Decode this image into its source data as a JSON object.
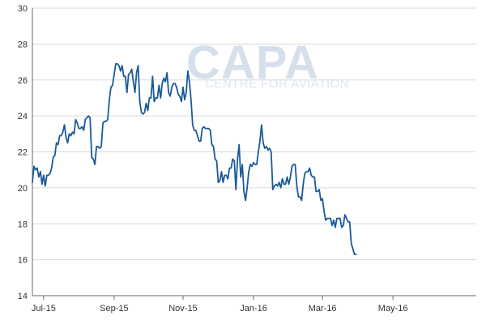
{
  "watermark": {
    "logo": "CAPA",
    "tagline": "CENTRE FOR AVIATION"
  },
  "chart_data": {
    "type": "line",
    "title": "",
    "xlabel": "",
    "ylabel": "",
    "ylim": [
      14,
      30
    ],
    "yticks": [
      14,
      16,
      18,
      20,
      22,
      24,
      26,
      28,
      30
    ],
    "xlim": [
      0,
      277
    ],
    "xticks": [
      {
        "label": "Jul-15",
        "x": 7
      },
      {
        "label": "Sep-15",
        "x": 51
      },
      {
        "label": "Nov-15",
        "x": 94
      },
      {
        "label": "Jan-16",
        "x": 138
      },
      {
        "label": "Mar-16",
        "x": 181
      },
      {
        "label": "May-16",
        "x": 225
      }
    ],
    "grid": "horizontal",
    "legend": "none",
    "colors": {
      "line": "#1a5a9a",
      "grid": "#d9d9d9",
      "axis": "#666666"
    },
    "series": [
      {
        "values": [
          [
            0,
            20.3
          ],
          [
            1,
            21.2
          ],
          [
            2,
            21.0
          ],
          [
            3,
            21.1
          ],
          [
            4,
            20.6
          ],
          [
            5,
            20.9
          ],
          [
            6,
            20.2
          ],
          [
            7,
            20.7
          ],
          [
            8,
            20.1
          ],
          [
            9,
            20.7
          ],
          [
            10,
            20.7
          ],
          [
            11,
            20.8
          ],
          [
            12,
            21.1
          ],
          [
            13,
            21.7
          ],
          [
            14,
            21.8
          ],
          [
            15,
            22.5
          ],
          [
            16,
            22.4
          ],
          [
            17,
            22.9
          ],
          [
            18,
            22.9
          ],
          [
            19,
            23.1
          ],
          [
            20,
            23.5
          ],
          [
            21,
            22.8
          ],
          [
            22,
            22.5
          ],
          [
            23,
            23.0
          ],
          [
            24,
            22.9
          ],
          [
            25,
            23.1
          ],
          [
            26,
            23.0
          ],
          [
            27,
            23.8
          ],
          [
            28,
            23.6
          ],
          [
            29,
            23.3
          ],
          [
            30,
            23.3
          ],
          [
            31,
            23.4
          ],
          [
            32,
            23.2
          ],
          [
            33,
            23.8
          ],
          [
            34,
            23.9
          ],
          [
            35,
            24.0
          ],
          [
            36,
            23.9
          ],
          [
            37,
            21.7
          ],
          [
            38,
            21.6
          ],
          [
            39,
            21.3
          ],
          [
            40,
            22.3
          ],
          [
            41,
            22.3
          ],
          [
            42,
            22.2
          ],
          [
            43,
            22.3
          ],
          [
            44,
            23.6
          ],
          [
            45,
            23.7
          ],
          [
            46,
            23.7
          ],
          [
            47,
            23.8
          ],
          [
            48,
            24.9
          ],
          [
            49,
            25.6
          ],
          [
            50,
            25.7
          ],
          [
            51,
            26.3
          ],
          [
            52,
            26.9
          ],
          [
            53,
            26.9
          ],
          [
            54,
            26.8
          ],
          [
            55,
            26.5
          ],
          [
            56,
            26.8
          ],
          [
            57,
            26.2
          ],
          [
            58,
            26.2
          ],
          [
            59,
            25.3
          ],
          [
            60,
            26.3
          ],
          [
            61,
            26.4
          ],
          [
            62,
            26.6
          ],
          [
            63,
            25.9
          ],
          [
            64,
            25.3
          ],
          [
            65,
            26.4
          ],
          [
            66,
            26.8
          ],
          [
            67,
            24.8
          ],
          [
            68,
            24.2
          ],
          [
            69,
            24.1
          ],
          [
            70,
            24.2
          ],
          [
            71,
            24.7
          ],
          [
            72,
            24.3
          ],
          [
            73,
            25.0
          ],
          [
            74,
            25.0
          ],
          [
            75,
            26.2
          ],
          [
            76,
            24.8
          ],
          [
            77,
            25.0
          ],
          [
            78,
            25.0
          ],
          [
            79,
            25.7
          ],
          [
            80,
            25.0
          ],
          [
            81,
            25.8
          ],
          [
            82,
            26.1
          ],
          [
            83,
            25.9
          ],
          [
            84,
            26.4
          ],
          [
            85,
            25.3
          ],
          [
            86,
            25.1
          ],
          [
            87,
            25.6
          ],
          [
            88,
            25.8
          ],
          [
            89,
            25.8
          ],
          [
            90,
            25.6
          ],
          [
            91,
            25.2
          ],
          [
            92,
            25.1
          ],
          [
            93,
            24.8
          ],
          [
            94,
            25.6
          ],
          [
            95,
            24.9
          ],
          [
            96,
            25.3
          ],
          [
            97,
            26.5
          ],
          [
            98,
            25.9
          ],
          [
            99,
            24.9
          ],
          [
            100,
            23.5
          ],
          [
            101,
            23.2
          ],
          [
            102,
            23.2
          ],
          [
            103,
            22.9
          ],
          [
            104,
            22.6
          ],
          [
            105,
            22.6
          ],
          [
            106,
            23.3
          ],
          [
            107,
            23.4
          ],
          [
            108,
            23.3
          ],
          [
            109,
            23.3
          ],
          [
            110,
            23.3
          ],
          [
            111,
            23.2
          ],
          [
            112,
            22.4
          ],
          [
            113,
            22.3
          ],
          [
            114,
            21.6
          ],
          [
            115,
            21.5
          ],
          [
            116,
            20.3
          ],
          [
            117,
            20.4
          ],
          [
            118,
            20.9
          ],
          [
            119,
            20.3
          ],
          [
            120,
            20.7
          ],
          [
            121,
            20.7
          ],
          [
            122,
            20.5
          ],
          [
            123,
            21.1
          ],
          [
            124,
            21.1
          ],
          [
            125,
            21.6
          ],
          [
            126,
            21.5
          ],
          [
            127,
            19.9
          ],
          [
            128,
            21.6
          ],
          [
            129,
            22.4
          ],
          [
            130,
            20.6
          ],
          [
            131,
            21.3
          ],
          [
            132,
            19.8
          ],
          [
            133,
            19.3
          ],
          [
            134,
            20.0
          ],
          [
            135,
            20.9
          ],
          [
            136,
            21.3
          ],
          [
            137,
            21.2
          ],
          [
            138,
            21.4
          ],
          [
            139,
            21.3
          ],
          [
            140,
            21.3
          ],
          [
            141,
            22.0
          ],
          [
            142,
            22.6
          ],
          [
            143,
            23.5
          ],
          [
            144,
            22.5
          ],
          [
            145,
            22.2
          ],
          [
            146,
            22.3
          ],
          [
            147,
            22.1
          ],
          [
            148,
            22.2
          ],
          [
            149,
            22.0
          ],
          [
            150,
            19.9
          ],
          [
            151,
            20.1
          ],
          [
            152,
            20.2
          ],
          [
            153,
            20.1
          ],
          [
            154,
            20.3
          ],
          [
            155,
            20.0
          ],
          [
            156,
            20.5
          ],
          [
            157,
            20.2
          ],
          [
            158,
            20.2
          ],
          [
            159,
            20.6
          ],
          [
            160,
            20.2
          ],
          [
            161,
            20.6
          ],
          [
            162,
            21.2
          ],
          [
            163,
            21.3
          ],
          [
            164,
            21.3
          ],
          [
            165,
            20.1
          ],
          [
            166,
            19.5
          ],
          [
            167,
            19.5
          ],
          [
            168,
            19.3
          ],
          [
            169,
            20.2
          ],
          [
            170,
            20.8
          ],
          [
            171,
            20.9
          ],
          [
            172,
            20.9
          ],
          [
            173,
            21.1
          ],
          [
            174,
            20.7
          ],
          [
            175,
            20.6
          ],
          [
            176,
            20.6
          ],
          [
            177,
            19.8
          ],
          [
            178,
            19.8
          ],
          [
            179,
            19.9
          ],
          [
            180,
            19.3
          ],
          [
            181,
            19.4
          ],
          [
            182,
            18.7
          ],
          [
            183,
            18.2
          ],
          [
            184,
            18.3
          ],
          [
            185,
            18.3
          ],
          [
            186,
            18.3
          ],
          [
            187,
            17.9
          ],
          [
            188,
            18.2
          ],
          [
            189,
            17.8
          ],
          [
            190,
            18.3
          ],
          [
            191,
            18.3
          ],
          [
            192,
            18.3
          ],
          [
            193,
            17.8
          ],
          [
            194,
            17.9
          ],
          [
            195,
            18.5
          ],
          [
            196,
            18.3
          ],
          [
            197,
            18.1
          ],
          [
            198,
            18.1
          ],
          [
            199,
            16.9
          ],
          [
            200,
            16.6
          ],
          [
            201,
            16.3
          ],
          [
            202,
            16.3
          ]
        ]
      }
    ]
  }
}
